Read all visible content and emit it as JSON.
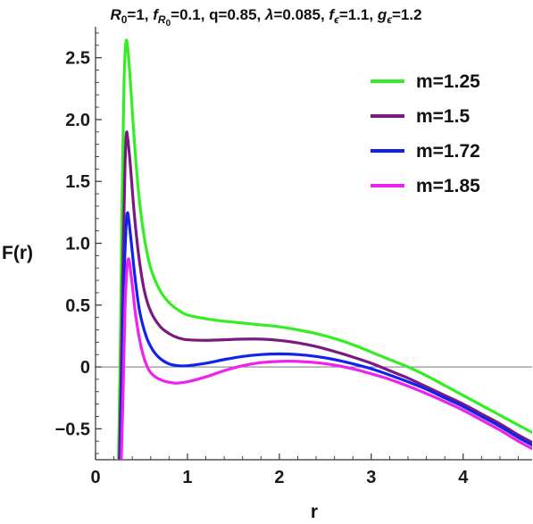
{
  "chart_data": {
    "type": "line",
    "title_parts": [
      {
        "text": "R",
        "italic": true
      },
      {
        "text": "0",
        "sub": true
      },
      {
        "text": "=1, "
      },
      {
        "text": "f",
        "italic": true
      },
      {
        "text": "R",
        "italic": true,
        "sub": true
      },
      {
        "text": "0",
        "subsub": true
      },
      {
        "text": "=0.1, q=0.85, "
      },
      {
        "text": "λ",
        "italic": true
      },
      {
        "text": "=0.085, "
      },
      {
        "text": "f",
        "italic": true
      },
      {
        "text": "ϵ",
        "italic": true,
        "sub": true
      },
      {
        "text": "=1.1, "
      },
      {
        "text": "g",
        "italic": true
      },
      {
        "text": "ϵ",
        "italic": true,
        "sub": true
      },
      {
        "text": "=1.2"
      }
    ],
    "xlabel": "r",
    "ylabel": "F(r)",
    "xlim": [
      0,
      4.75
    ],
    "ylim": [
      -0.75,
      2.75
    ],
    "x_ticks": [
      {
        "value": 0,
        "label": "0"
      },
      {
        "value": 1,
        "label": "1"
      },
      {
        "value": 2,
        "label": "2"
      },
      {
        "value": 3,
        "label": "3"
      },
      {
        "value": 4,
        "label": "4"
      }
    ],
    "y_ticks": [
      {
        "value": -0.5,
        "label": "−0.5"
      },
      {
        "value": 0,
        "label": "0"
      },
      {
        "value": 0.5,
        "label": "0.5"
      },
      {
        "value": 1.0,
        "label": "1.0"
      },
      {
        "value": 1.5,
        "label": "1.5"
      },
      {
        "value": 2.0,
        "label": "2.0"
      },
      {
        "value": 2.5,
        "label": "2.5"
      }
    ],
    "zero_line": true,
    "grid": false,
    "legend_position": "top-right",
    "series": [
      {
        "name": "m=1.25",
        "color": "#33ee22",
        "points": [
          [
            0.25,
            -0.75
          ],
          [
            0.27,
            0.2
          ],
          [
            0.29,
            1.4
          ],
          [
            0.31,
            2.3
          ],
          [
            0.33,
            2.62
          ],
          [
            0.35,
            2.58
          ],
          [
            0.38,
            2.3
          ],
          [
            0.42,
            1.85
          ],
          [
            0.47,
            1.4
          ],
          [
            0.53,
            1.05
          ],
          [
            0.6,
            0.8
          ],
          [
            0.7,
            0.62
          ],
          [
            0.8,
            0.52
          ],
          [
            0.9,
            0.46
          ],
          [
            1.0,
            0.42
          ],
          [
            1.2,
            0.39
          ],
          [
            1.4,
            0.37
          ],
          [
            1.6,
            0.355
          ],
          [
            1.8,
            0.34
          ],
          [
            2.0,
            0.325
          ],
          [
            2.2,
            0.3
          ],
          [
            2.4,
            0.27
          ],
          [
            2.6,
            0.23
          ],
          [
            2.8,
            0.18
          ],
          [
            3.0,
            0.12
          ],
          [
            3.2,
            0.06
          ],
          [
            3.4,
            0.0
          ],
          [
            3.6,
            -0.07
          ],
          [
            3.8,
            -0.15
          ],
          [
            4.0,
            -0.23
          ],
          [
            4.2,
            -0.31
          ],
          [
            4.4,
            -0.39
          ],
          [
            4.6,
            -0.47
          ],
          [
            4.75,
            -0.53
          ]
        ]
      },
      {
        "name": "m=1.5",
        "color": "#7a1a7e",
        "points": [
          [
            0.26,
            -0.75
          ],
          [
            0.28,
            0.0
          ],
          [
            0.3,
            0.9
          ],
          [
            0.32,
            1.6
          ],
          [
            0.335,
            1.88
          ],
          [
            0.35,
            1.85
          ],
          [
            0.38,
            1.62
          ],
          [
            0.42,
            1.25
          ],
          [
            0.47,
            0.9
          ],
          [
            0.53,
            0.62
          ],
          [
            0.6,
            0.45
          ],
          [
            0.7,
            0.33
          ],
          [
            0.8,
            0.27
          ],
          [
            0.9,
            0.235
          ],
          [
            1.0,
            0.22
          ],
          [
            1.2,
            0.215
          ],
          [
            1.4,
            0.22
          ],
          [
            1.6,
            0.225
          ],
          [
            1.8,
            0.225
          ],
          [
            2.0,
            0.215
          ],
          [
            2.2,
            0.195
          ],
          [
            2.4,
            0.165
          ],
          [
            2.6,
            0.125
          ],
          [
            2.8,
            0.08
          ],
          [
            3.0,
            0.03
          ],
          [
            3.2,
            -0.03
          ],
          [
            3.4,
            -0.09
          ],
          [
            3.6,
            -0.16
          ],
          [
            3.8,
            -0.23
          ],
          [
            4.0,
            -0.3
          ],
          [
            4.2,
            -0.38
          ],
          [
            4.4,
            -0.46
          ],
          [
            4.6,
            -0.55
          ],
          [
            4.75,
            -0.61
          ]
        ]
      },
      {
        "name": "m=1.72",
        "color": "#1122ee",
        "points": [
          [
            0.27,
            -0.75
          ],
          [
            0.29,
            -0.1
          ],
          [
            0.31,
            0.7
          ],
          [
            0.33,
            1.1
          ],
          [
            0.345,
            1.24
          ],
          [
            0.36,
            1.2
          ],
          [
            0.39,
            1.0
          ],
          [
            0.43,
            0.72
          ],
          [
            0.48,
            0.45
          ],
          [
            0.55,
            0.25
          ],
          [
            0.62,
            0.14
          ],
          [
            0.7,
            0.07
          ],
          [
            0.8,
            0.025
          ],
          [
            0.9,
            0.01
          ],
          [
            1.0,
            0.01
          ],
          [
            1.2,
            0.03
          ],
          [
            1.4,
            0.06
          ],
          [
            1.6,
            0.085
          ],
          [
            1.8,
            0.1
          ],
          [
            2.0,
            0.105
          ],
          [
            2.2,
            0.1
          ],
          [
            2.4,
            0.085
          ],
          [
            2.6,
            0.06
          ],
          [
            2.8,
            0.025
          ],
          [
            3.0,
            -0.015
          ],
          [
            3.2,
            -0.065
          ],
          [
            3.4,
            -0.12
          ],
          [
            3.6,
            -0.18
          ],
          [
            3.8,
            -0.25
          ],
          [
            4.0,
            -0.32
          ],
          [
            4.2,
            -0.4
          ],
          [
            4.4,
            -0.48
          ],
          [
            4.6,
            -0.57
          ],
          [
            4.75,
            -0.63
          ]
        ]
      },
      {
        "name": "m=1.85",
        "color": "#ee22ee",
        "points": [
          [
            0.28,
            -0.75
          ],
          [
            0.3,
            -0.2
          ],
          [
            0.32,
            0.45
          ],
          [
            0.34,
            0.78
          ],
          [
            0.355,
            0.87
          ],
          [
            0.37,
            0.84
          ],
          [
            0.4,
            0.66
          ],
          [
            0.44,
            0.4
          ],
          [
            0.5,
            0.15
          ],
          [
            0.57,
            -0.01
          ],
          [
            0.65,
            -0.08
          ],
          [
            0.75,
            -0.115
          ],
          [
            0.85,
            -0.13
          ],
          [
            0.9,
            -0.13
          ],
          [
            1.0,
            -0.12
          ],
          [
            1.2,
            -0.08
          ],
          [
            1.4,
            -0.03
          ],
          [
            1.6,
            0.01
          ],
          [
            1.8,
            0.035
          ],
          [
            2.0,
            0.045
          ],
          [
            2.2,
            0.045
          ],
          [
            2.4,
            0.035
          ],
          [
            2.6,
            0.015
          ],
          [
            2.8,
            -0.015
          ],
          [
            3.0,
            -0.055
          ],
          [
            3.2,
            -0.1
          ],
          [
            3.4,
            -0.155
          ],
          [
            3.6,
            -0.215
          ],
          [
            3.8,
            -0.28
          ],
          [
            4.0,
            -0.35
          ],
          [
            4.2,
            -0.43
          ],
          [
            4.4,
            -0.51
          ],
          [
            4.6,
            -0.6
          ],
          [
            4.75,
            -0.66
          ]
        ]
      }
    ]
  }
}
